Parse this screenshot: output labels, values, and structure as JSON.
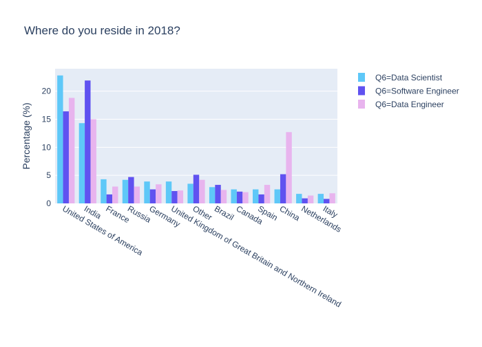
{
  "chart_data": {
    "type": "bar",
    "title": "Where do you reside in 2018?",
    "xlabel": "",
    "ylabel": "Percentage (%)",
    "ylim": [
      0,
      24
    ],
    "yticks": [
      0,
      5,
      10,
      15,
      20
    ],
    "grid": true,
    "legend_position": "top-right",
    "categories": [
      "United States of America",
      "India",
      "France",
      "Russia",
      "Germany",
      "United Kingdom of Great Britain and Northern Ireland",
      "Other",
      "Brazil",
      "Canada",
      "Spain",
      "China",
      "Netherlands",
      "Italy"
    ],
    "series": [
      {
        "name": "Q6=Data Scientist",
        "color": "#5ec8f8",
        "values": [
          22.8,
          14.3,
          4.3,
          4.2,
          3.9,
          3.9,
          3.5,
          2.9,
          2.5,
          2.5,
          2.5,
          1.7,
          1.7
        ]
      },
      {
        "name": "Q6=Software Engineer",
        "color": "#6052f0",
        "values": [
          16.4,
          21.9,
          1.6,
          4.7,
          2.5,
          2.2,
          5.1,
          3.3,
          2.1,
          1.6,
          5.2,
          0.9,
          0.8
        ]
      },
      {
        "name": "Q6=Data Engineer",
        "color": "#e8b4ee",
        "values": [
          18.8,
          15.0,
          3.0,
          3.0,
          3.4,
          2.3,
          4.2,
          2.4,
          2.0,
          3.3,
          12.7,
          1.4,
          1.8
        ]
      }
    ]
  }
}
